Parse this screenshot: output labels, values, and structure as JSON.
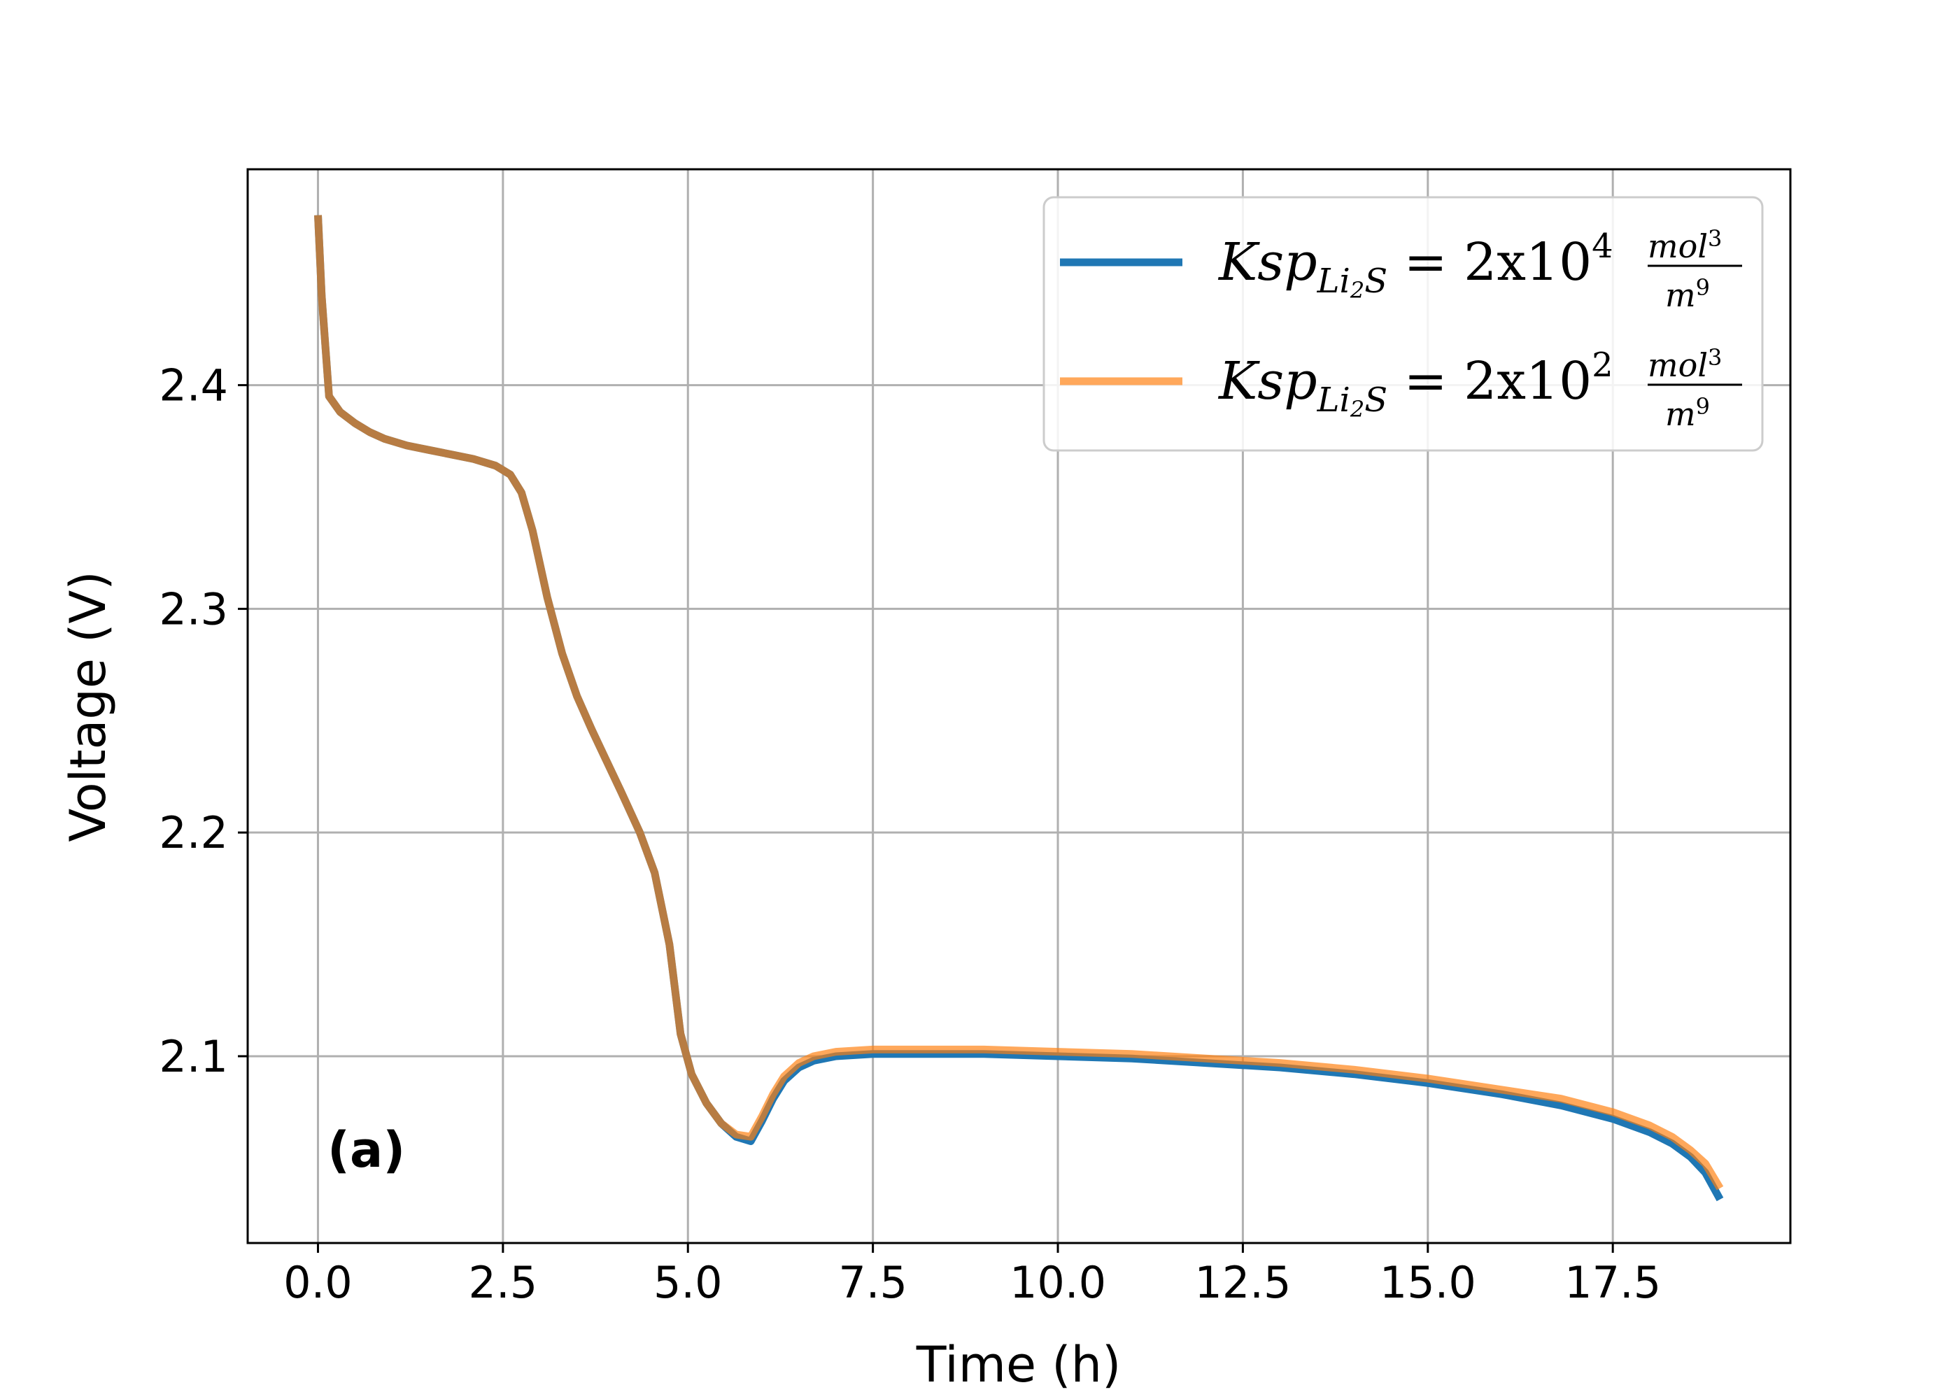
{
  "chart_data": {
    "type": "line",
    "panel_label": "(a)",
    "xlabel": "Time (h)",
    "ylabel": "Voltage (V)",
    "xlim": [
      -0.95,
      19.9
    ],
    "ylim": [
      2.0165,
      2.4965
    ],
    "xticks": [
      0.0,
      2.5,
      5.0,
      7.5,
      10.0,
      12.5,
      15.0,
      17.5
    ],
    "xtick_labels": [
      "0.0",
      "2.5",
      "5.0",
      "7.5",
      "10.0",
      "12.5",
      "15.0",
      "17.5"
    ],
    "yticks": [
      2.1,
      2.2,
      2.3,
      2.4
    ],
    "ytick_labels": [
      "2.1",
      "2.2",
      "2.3",
      "2.4"
    ],
    "grid": true,
    "legend_position": "top-right",
    "series": [
      {
        "name": "Ksp_{Li2S} = 2x10^4 mol^3/m^9",
        "legend": {
          "prefix": "Ksp",
          "sub": "Li",
          "sub2": "2",
          "sub3": "S",
          "eq": " = 2x10",
          "exp": "4",
          "num": "mol",
          "numexp": "3",
          "den": "m",
          "denexp": "9"
        },
        "color": "#1f77b4",
        "x": [
          0.0,
          0.05,
          0.15,
          0.3,
          0.5,
          0.7,
          0.9,
          1.2,
          1.5,
          1.8,
          2.1,
          2.4,
          2.6,
          2.75,
          2.9,
          3.1,
          3.3,
          3.5,
          3.7,
          3.9,
          4.1,
          4.35,
          4.55,
          4.75,
          4.9,
          5.05,
          5.25,
          5.45,
          5.65,
          5.85,
          6.0,
          6.15,
          6.3,
          6.5,
          6.7,
          7.0,
          7.5,
          8.0,
          9.0,
          10.0,
          11.0,
          12.0,
          13.0,
          14.0,
          15.0,
          16.0,
          16.8,
          17.5,
          18.0,
          18.3,
          18.55,
          18.75,
          18.95
        ],
        "y": [
          2.476,
          2.44,
          2.395,
          2.388,
          2.383,
          2.379,
          2.376,
          2.373,
          2.371,
          2.369,
          2.367,
          2.364,
          2.36,
          2.352,
          2.335,
          2.305,
          2.28,
          2.261,
          2.246,
          2.232,
          2.218,
          2.2,
          2.182,
          2.15,
          2.11,
          2.092,
          2.079,
          2.07,
          2.064,
          2.062,
          2.071,
          2.081,
          2.089,
          2.095,
          2.098,
          2.1,
          2.101,
          2.101,
          2.101,
          2.1,
          2.099,
          2.097,
          2.095,
          2.092,
          2.088,
          2.083,
          2.078,
          2.072,
          2.066,
          2.061,
          2.055,
          2.048,
          2.036
        ]
      },
      {
        "name": "Ksp_{Li2S} = 2x10^2 mol^3/m^9",
        "legend": {
          "prefix": "Ksp",
          "sub": "Li",
          "sub2": "2",
          "sub3": "S",
          "eq": " = 2x10",
          "exp": "2",
          "num": "mol",
          "numexp": "3",
          "den": "m",
          "denexp": "9"
        },
        "color": "#ff7f0e",
        "opacity": 0.68,
        "x": [
          0.0,
          0.05,
          0.15,
          0.3,
          0.5,
          0.7,
          0.9,
          1.2,
          1.5,
          1.8,
          2.1,
          2.4,
          2.6,
          2.75,
          2.9,
          3.1,
          3.3,
          3.5,
          3.7,
          3.9,
          4.1,
          4.35,
          4.55,
          4.75,
          4.9,
          5.05,
          5.25,
          5.45,
          5.65,
          5.85,
          6.0,
          6.15,
          6.3,
          6.5,
          6.7,
          7.0,
          7.5,
          8.0,
          9.0,
          10.0,
          11.0,
          12.0,
          13.0,
          14.0,
          15.0,
          16.0,
          16.8,
          17.5,
          18.0,
          18.3,
          18.55,
          18.75,
          18.95
        ],
        "y": [
          2.476,
          2.44,
          2.395,
          2.388,
          2.383,
          2.379,
          2.376,
          2.373,
          2.371,
          2.369,
          2.367,
          2.364,
          2.36,
          2.352,
          2.335,
          2.305,
          2.28,
          2.261,
          2.246,
          2.232,
          2.218,
          2.2,
          2.182,
          2.15,
          2.11,
          2.092,
          2.079,
          2.07,
          2.065,
          2.064,
          2.073,
          2.083,
          2.091,
          2.097,
          2.1,
          2.102,
          2.103,
          2.103,
          2.103,
          2.102,
          2.101,
          2.099,
          2.097,
          2.094,
          2.09,
          2.085,
          2.081,
          2.075,
          2.069,
          2.064,
          2.058,
          2.052,
          2.041
        ]
      }
    ]
  }
}
